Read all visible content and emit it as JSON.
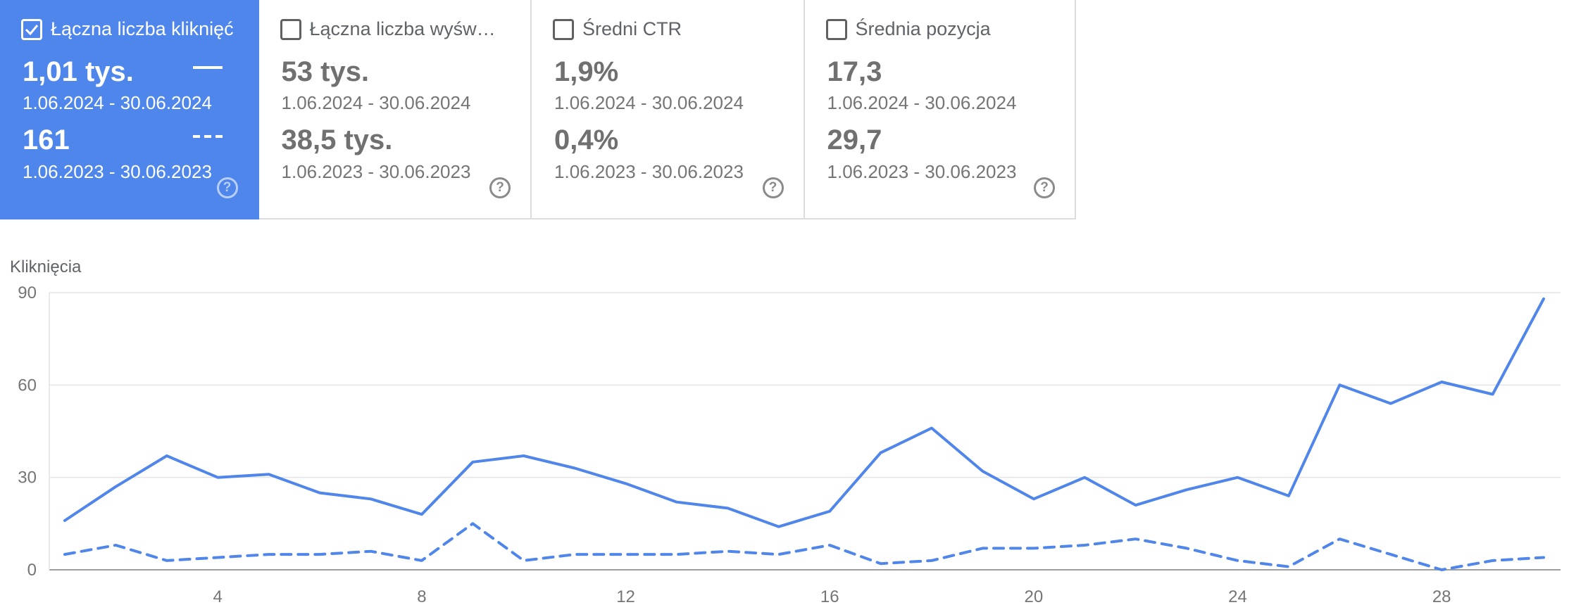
{
  "cards": [
    {
      "title": "Łączna liczba kliknięć",
      "selected": true,
      "value_current": "1,01 tys.",
      "range_current": "1.06.2024 - 30.06.2024",
      "value_previous": "161",
      "range_previous": "1.06.2023 - 30.06.2023",
      "help": "?"
    },
    {
      "title": "Łączna liczba wyświetleń",
      "selected": false,
      "value_current": "53 tys.",
      "range_current": "1.06.2024 - 30.06.2024",
      "value_previous": "38,5 tys.",
      "range_previous": "1.06.2023 - 30.06.2023",
      "help": "?"
    },
    {
      "title": "Średni CTR",
      "selected": false,
      "value_current": "1,9%",
      "range_current": "1.06.2024 - 30.06.2024",
      "value_previous": "0,4%",
      "range_previous": "1.06.2023 - 30.06.2023",
      "help": "?"
    },
    {
      "title": "Średnia pozycja",
      "selected": false,
      "value_current": "17,3",
      "range_current": "1.06.2024 - 30.06.2024",
      "value_previous": "29,7",
      "range_previous": "1.06.2023 - 30.06.2023",
      "help": "?"
    }
  ],
  "chart_data": {
    "type": "line",
    "ylabel": "Kliknięcia",
    "ylim": [
      0,
      90
    ],
    "yticks": [
      0,
      30,
      60,
      90
    ],
    "xlim": [
      1,
      30
    ],
    "xticks": [
      4,
      8,
      12,
      16,
      20,
      24,
      28
    ],
    "x": [
      1,
      2,
      3,
      4,
      5,
      6,
      7,
      8,
      9,
      10,
      11,
      12,
      13,
      14,
      15,
      16,
      17,
      18,
      19,
      20,
      21,
      22,
      23,
      24,
      25,
      26,
      27,
      28,
      29,
      30
    ],
    "grid": true,
    "series": [
      {
        "style": "solid",
        "color": "#5086ea",
        "values": [
          16,
          27,
          37,
          30,
          31,
          25,
          23,
          18,
          35,
          37,
          33,
          28,
          22,
          20,
          14,
          19,
          38,
          46,
          32,
          23,
          30,
          21,
          26,
          30,
          24,
          60,
          54,
          61,
          57,
          88
        ]
      },
      {
        "style": "dashed",
        "color": "#5086ea",
        "values": [
          5,
          8,
          3,
          4,
          5,
          5,
          6,
          3,
          15,
          3,
          5,
          5,
          5,
          6,
          5,
          8,
          2,
          3,
          7,
          7,
          8,
          10,
          7,
          3,
          1,
          10,
          5,
          0,
          3,
          4
        ]
      }
    ]
  }
}
